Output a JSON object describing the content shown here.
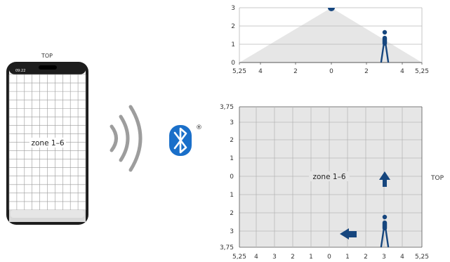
{
  "phone": {
    "top_label": "TOP",
    "status_time": "09:22",
    "zone_label": "zone 1–6"
  },
  "bluetooth": {
    "registered": "®"
  },
  "side_view": {
    "y_ticks": [
      "0",
      "1",
      "2",
      "3"
    ],
    "x_ticks": [
      "5,25",
      "4",
      "2",
      "0",
      "2",
      "4",
      "5,25"
    ]
  },
  "top_view": {
    "y_ticks": [
      "3,75",
      "3",
      "2",
      "1",
      "0",
      "1",
      "2",
      "3",
      "3,75"
    ],
    "x_ticks": [
      "5,25",
      "4",
      "3",
      "2",
      "1",
      "0",
      "1",
      "2",
      "3",
      "4",
      "5,25"
    ],
    "zone_label": "zone 1–6",
    "top_label": "TOP"
  },
  "colors": {
    "accent_blue": "#16467e",
    "bluetooth_blue": "#1a6fc9",
    "grid": "#b8b8b8",
    "area_fill": "#e6e6e6",
    "wave_gray": "#9d9d9d"
  },
  "icons": [
    "bluetooth-icon",
    "signal-waves-icon",
    "person-icon",
    "direction-arrow-icon"
  ]
}
